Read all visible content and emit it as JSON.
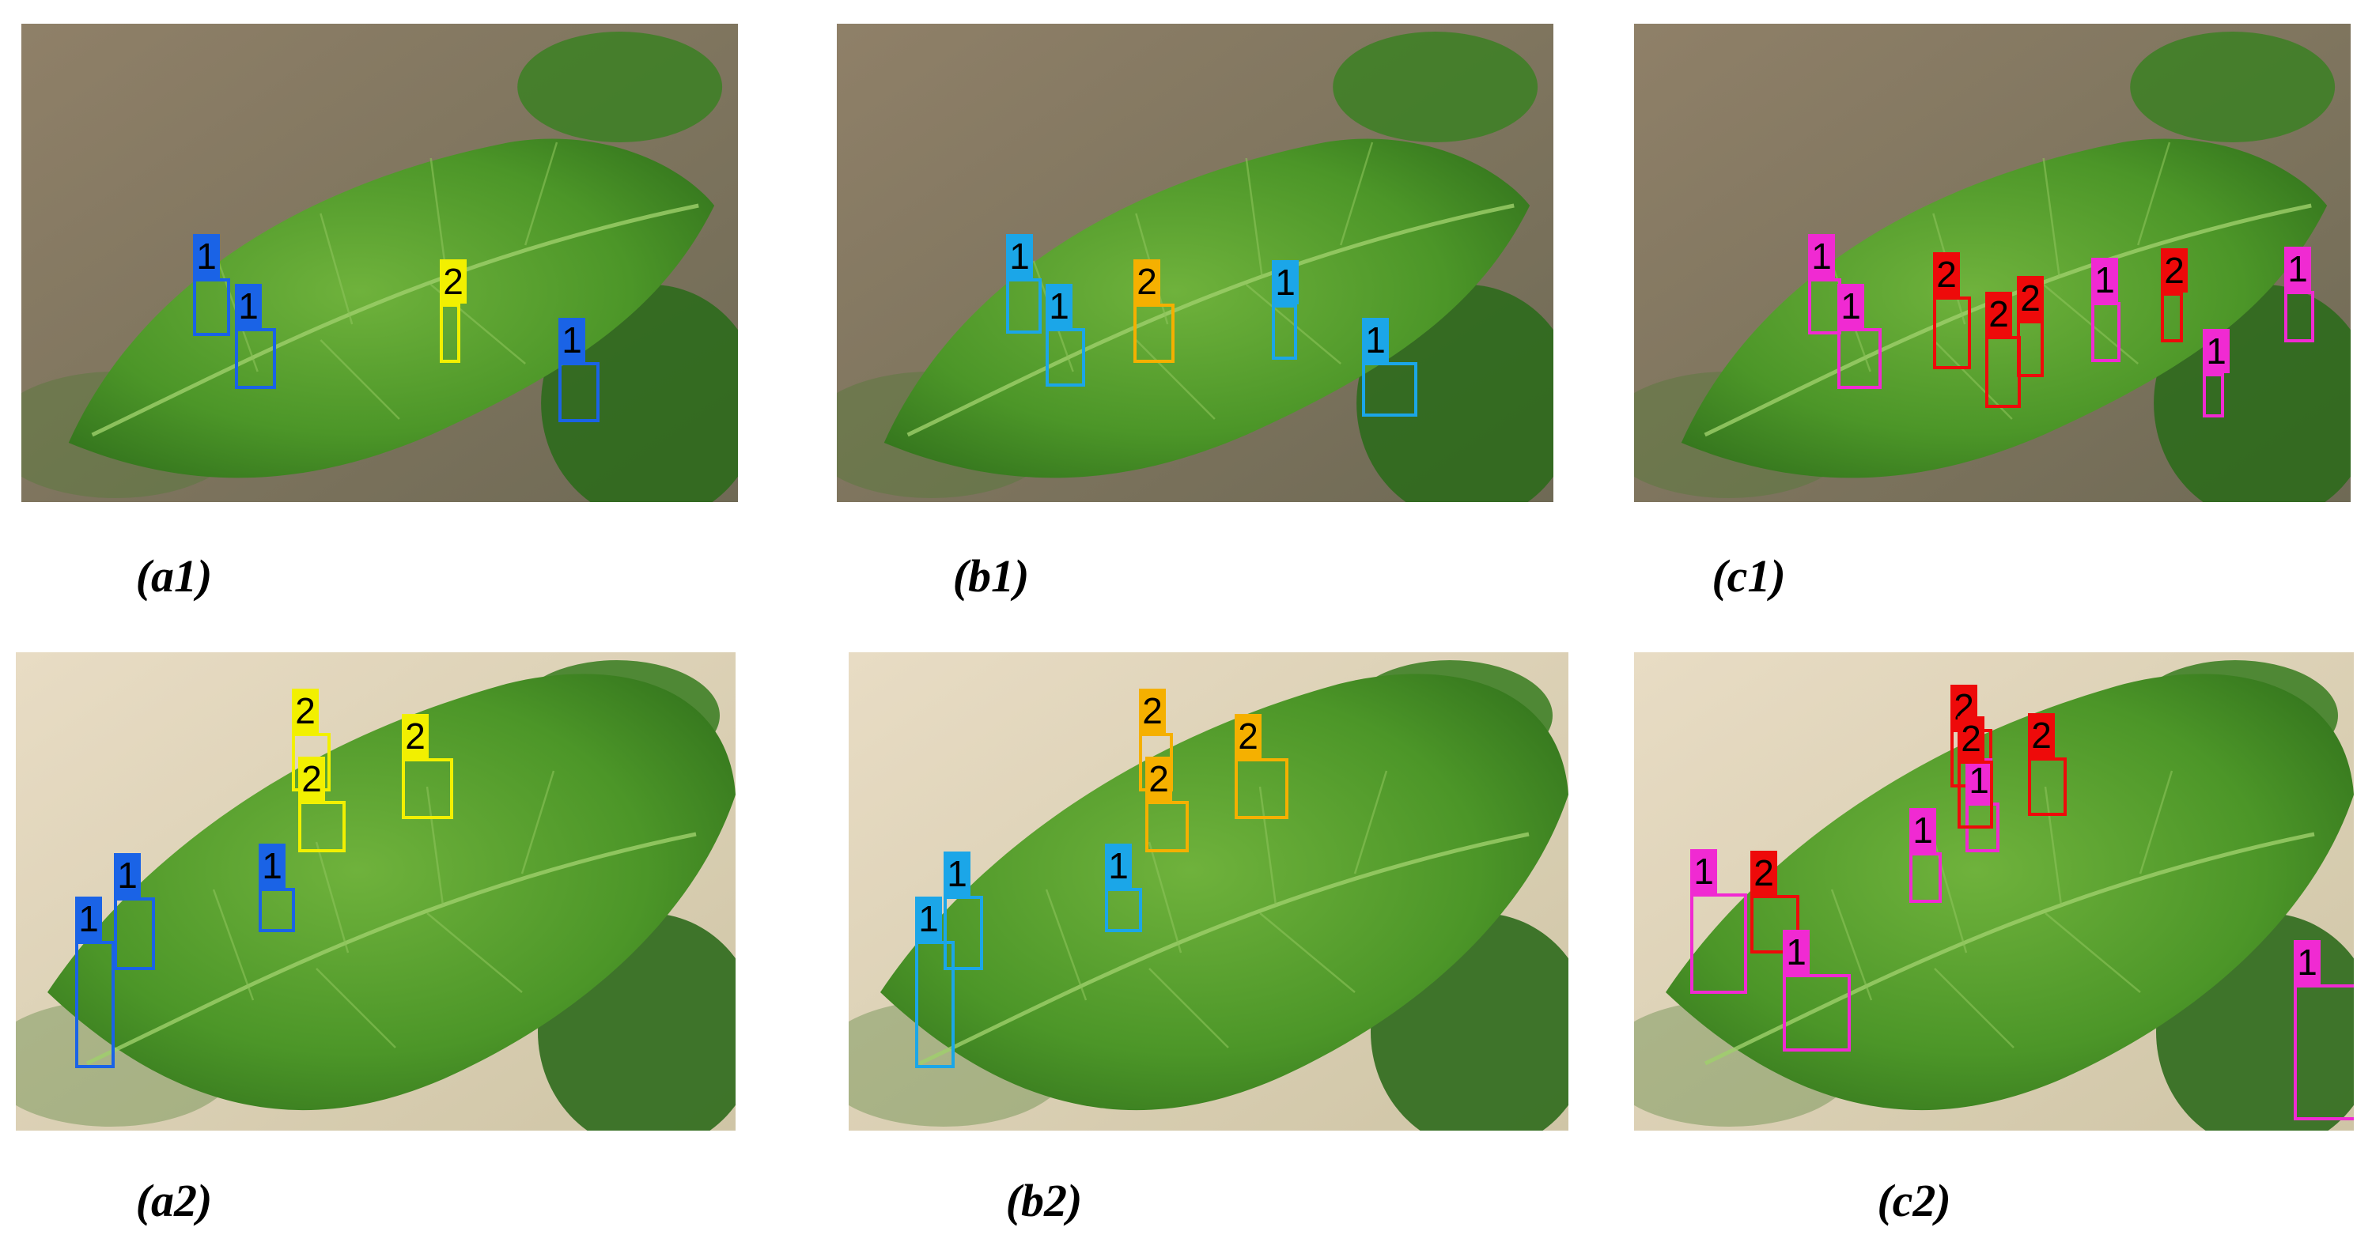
{
  "colors": {
    "class1_a": "#1a63e6",
    "class2_a": "#f2f000",
    "class1_b": "#1ba6e8",
    "class2_b": "#f5b000",
    "class1_c": "#f02ad2",
    "class2_c": "#ee0a0a"
  },
  "panels": [
    {
      "id": "a1",
      "caption": "(a1)",
      "detections": [
        {
          "label": "1",
          "class": 1
        },
        {
          "label": "1",
          "class": 1
        },
        {
          "label": "2",
          "class": 2
        },
        {
          "label": "1",
          "class": 1
        }
      ]
    },
    {
      "id": "b1",
      "caption": "(b1)",
      "detections": [
        {
          "label": "1",
          "class": 1
        },
        {
          "label": "1",
          "class": 1
        },
        {
          "label": "2",
          "class": 2
        },
        {
          "label": "1",
          "class": 1
        },
        {
          "label": "1",
          "class": 1
        }
      ]
    },
    {
      "id": "c1",
      "caption": "(c1)",
      "detections": [
        {
          "label": "1",
          "class": 1
        },
        {
          "label": "1",
          "class": 1
        },
        {
          "label": "2",
          "class": 2
        },
        {
          "label": "2",
          "class": 2
        },
        {
          "label": "2",
          "class": 2
        },
        {
          "label": "1",
          "class": 1
        },
        {
          "label": "2",
          "class": 2
        },
        {
          "label": "1",
          "class": 1
        },
        {
          "label": "1",
          "class": 1
        }
      ]
    },
    {
      "id": "a2",
      "caption": "(a2)",
      "detections": [
        {
          "label": "2",
          "class": 2
        },
        {
          "label": "2",
          "class": 2
        },
        {
          "label": "2",
          "class": 2
        },
        {
          "label": "1",
          "class": 1
        },
        {
          "label": "1",
          "class": 1
        },
        {
          "label": "1",
          "class": 1
        }
      ]
    },
    {
      "id": "b2",
      "caption": "(b2)",
      "detections": [
        {
          "label": "2",
          "class": 2
        },
        {
          "label": "2",
          "class": 2
        },
        {
          "label": "2",
          "class": 2
        },
        {
          "label": "1",
          "class": 1
        },
        {
          "label": "1",
          "class": 1
        },
        {
          "label": "1",
          "class": 1
        }
      ]
    },
    {
      "id": "c2",
      "caption": "(c2)",
      "detections": [
        {
          "label": "2",
          "class": 2
        },
        {
          "label": "1",
          "class": 1
        },
        {
          "label": "2",
          "class": 2
        },
        {
          "label": "2",
          "class": 2
        },
        {
          "label": "1",
          "class": 1
        },
        {
          "label": "1",
          "class": 1
        },
        {
          "label": "2",
          "class": 2
        },
        {
          "label": "1",
          "class": 1
        },
        {
          "label": "1",
          "class": 1
        }
      ]
    }
  ]
}
